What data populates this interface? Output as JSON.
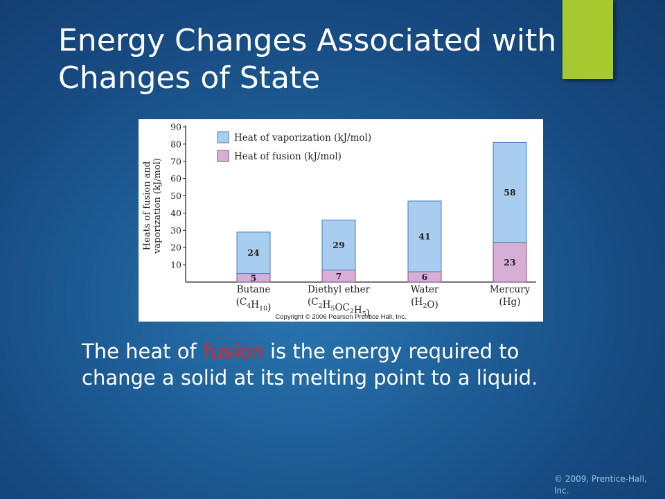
{
  "slide": {
    "title": "Energy Changes Associated with Changes of State",
    "body_before": "The heat of ",
    "body_highlight": "fusion",
    "body_after": " is the energy required to change a solid at its melting point to a liquid.",
    "footer": "© 2009, Prentice-Hall, Inc."
  },
  "colors": {
    "accent_green": "#a6c92f",
    "highlight_red": "#e2232a",
    "vaporization_fill": "#a9cdee",
    "fusion_fill": "#d6aed6"
  },
  "chart_data": {
    "type": "bar",
    "stacked": true,
    "ylabel": "Heats of fusion and vaporization (kJ/mol)",
    "ylabel_lines": [
      "Heats of fusion and",
      "vaporization (kJ/mol)"
    ],
    "ylim": [
      0,
      90
    ],
    "yticks": [
      10,
      20,
      30,
      40,
      50,
      60,
      70,
      80,
      90
    ],
    "categories": [
      {
        "name": "Butane",
        "formula": [
          [
            "C",
            ""
          ],
          [
            "4",
            "sub"
          ],
          [
            "H",
            ""
          ],
          [
            "10",
            "sub"
          ]
        ]
      },
      {
        "name": "Diethyl ether",
        "formula": [
          [
            "C",
            ""
          ],
          [
            "2",
            "sub"
          ],
          [
            "H",
            ""
          ],
          [
            "5",
            "sub"
          ],
          [
            "OC",
            ""
          ],
          [
            "2",
            "sub"
          ],
          [
            "H",
            ""
          ],
          [
            "5",
            "sub"
          ]
        ]
      },
      {
        "name": "Water",
        "formula": [
          [
            "H",
            ""
          ],
          [
            "2",
            "sub"
          ],
          [
            "O",
            ""
          ]
        ]
      },
      {
        "name": "Mercury",
        "formula": [
          [
            "Hg",
            ""
          ]
        ]
      }
    ],
    "series": [
      {
        "name": "Heat of fusion (kJ/mol)",
        "values": [
          5,
          7,
          6,
          23
        ]
      },
      {
        "name": "Heat of vaporization (kJ/mol)",
        "values": [
          24,
          29,
          41,
          58
        ]
      }
    ],
    "legend": [
      "Heat of vaporization (kJ/mol)",
      "Heat of fusion (kJ/mol)"
    ],
    "legend_position": "top-left",
    "grid": false,
    "credit": "Copyright © 2006 Pearson Prentice Hall, Inc."
  }
}
